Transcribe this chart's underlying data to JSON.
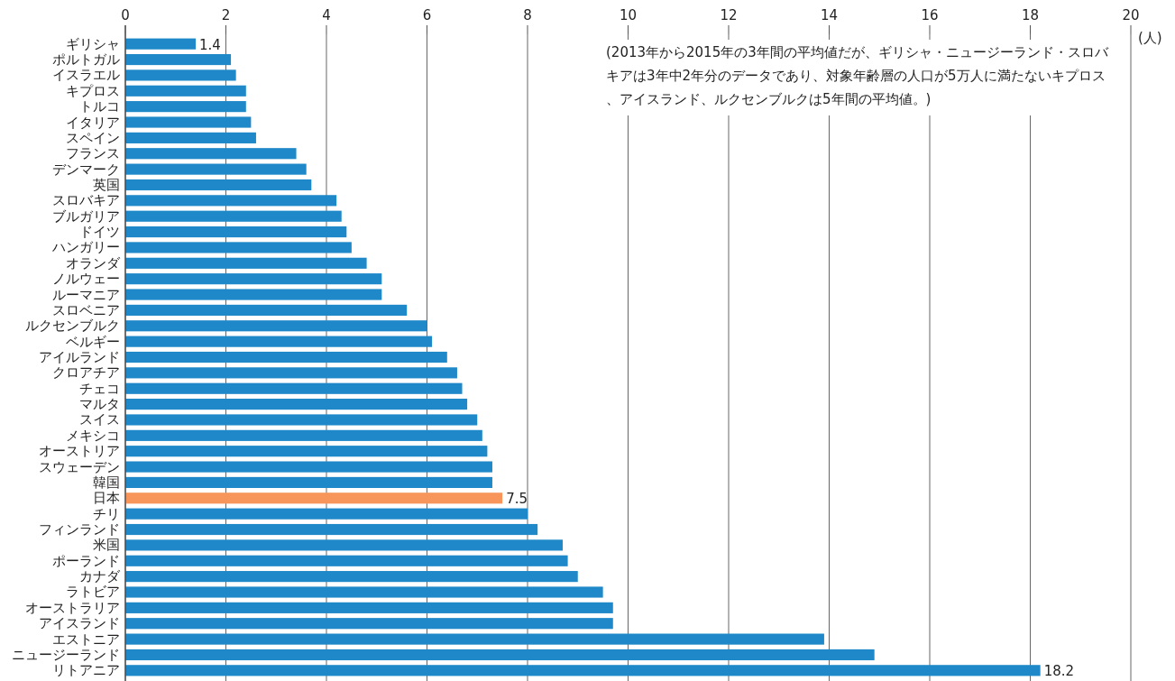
{
  "chart_data": {
    "type": "bar",
    "orientation": "horizontal",
    "categories": [
      "ギリシャ",
      "ポルトガル",
      "イスラエル",
      "キプロス",
      "トルコ",
      "イタリア",
      "スペイン",
      "フランス",
      "デンマーク",
      "英国",
      "スロバキア",
      "ブルガリア",
      "ドイツ",
      "ハンガリー",
      "オランダ",
      "ノルウェー",
      "ルーマニア",
      "スロベニア",
      "ルクセンブルク",
      "ベルギー",
      "アイルランド",
      "クロアチア",
      "チェコ",
      "マルタ",
      "スイス",
      "メキシコ",
      "オーストリア",
      "スウェーデン",
      "韓国",
      "日本",
      "チリ",
      "フィンランド",
      "米国",
      "ポーランド",
      "カナダ",
      "ラトビア",
      "オーストラリア",
      "アイスランド",
      "エストニア",
      "ニュージーランド",
      "リトアニア"
    ],
    "values": [
      1.4,
      2.1,
      2.2,
      2.4,
      2.4,
      2.5,
      2.6,
      3.4,
      3.6,
      3.7,
      4.2,
      4.3,
      4.4,
      4.5,
      4.8,
      5.1,
      5.1,
      5.6,
      6.0,
      6.1,
      6.4,
      6.6,
      6.7,
      6.8,
      7.0,
      7.1,
      7.2,
      7.3,
      7.3,
      7.5,
      8.0,
      8.2,
      8.7,
      8.8,
      9.0,
      9.5,
      9.7,
      9.7,
      13.9,
      14.9,
      18.2
    ],
    "colors": [
      "#1e88c8",
      "#1e88c8",
      "#1e88c8",
      "#1e88c8",
      "#1e88c8",
      "#1e88c8",
      "#1e88c8",
      "#1e88c8",
      "#1e88c8",
      "#1e88c8",
      "#1e88c8",
      "#1e88c8",
      "#1e88c8",
      "#1e88c8",
      "#1e88c8",
      "#1e88c8",
      "#1e88c8",
      "#1e88c8",
      "#1e88c8",
      "#1e88c8",
      "#1e88c8",
      "#1e88c8",
      "#1e88c8",
      "#1e88c8",
      "#1e88c8",
      "#1e88c8",
      "#1e88c8",
      "#1e88c8",
      "#1e88c8",
      "#f7955a",
      "#1e88c8",
      "#1e88c8",
      "#1e88c8",
      "#1e88c8",
      "#1e88c8",
      "#1e88c8",
      "#1e88c8",
      "#1e88c8",
      "#1e88c8",
      "#1e88c8",
      "#1e88c8"
    ],
    "value_labels": [
      "1.4",
      null,
      null,
      null,
      null,
      null,
      null,
      null,
      null,
      null,
      null,
      null,
      null,
      null,
      null,
      null,
      null,
      null,
      null,
      null,
      null,
      null,
      null,
      null,
      null,
      null,
      null,
      null,
      null,
      "7.5",
      null,
      null,
      null,
      null,
      null,
      null,
      null,
      null,
      null,
      null,
      "18.2"
    ],
    "xlim": [
      0,
      20
    ],
    "xticks": [
      0,
      2,
      4,
      6,
      8,
      10,
      12,
      14,
      16,
      18,
      20
    ],
    "xlabel": "(人)",
    "grid": "x",
    "annotations": [
      "(2013年から2015年の3年間の平均値だが、ギリシャ・ニュージーランド・スロバキアは3年中2年分のデータであり、対象年齢層の人口が5万人に満たないキプロス、アイスランド、ルクセンブルクは5年間の平均値。)"
    ]
  }
}
